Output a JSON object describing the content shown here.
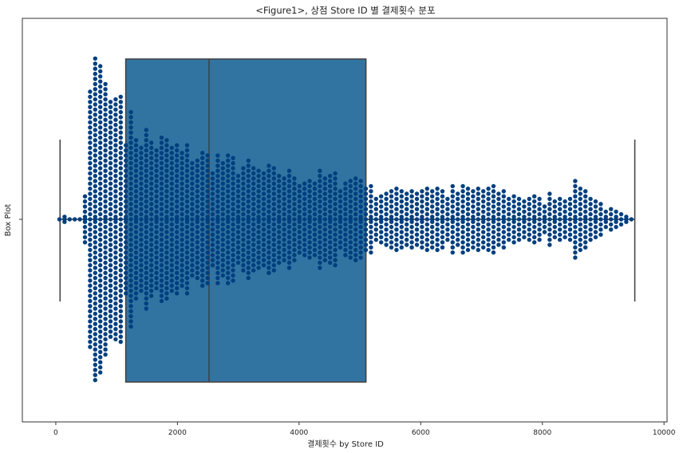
{
  "chart_data": {
    "type": "box",
    "overlay": "swarm",
    "title": "<Figure1>, 상점 Store ID 별 결제횟수 분포",
    "xlabel": "결제횟수 by Store ID",
    "ylabel": "Box Plot",
    "xlim": [
      -550,
      10050
    ],
    "x_ticks": [
      0,
      2000,
      4000,
      6000,
      8000,
      10000
    ],
    "x_tick_labels": [
      "0",
      "2000",
      "4000",
      "6000",
      "8000",
      "10000"
    ],
    "y_tick_labels": [
      ""
    ],
    "box": {
      "whisker_low": 70,
      "q1": 1150,
      "median": 2520,
      "q3": 5100,
      "whisker_high": 9520
    },
    "colors": {
      "box_fill": "#3274a1",
      "box_edge": "#3f3f3f",
      "points": "#003f7f"
    }
  }
}
